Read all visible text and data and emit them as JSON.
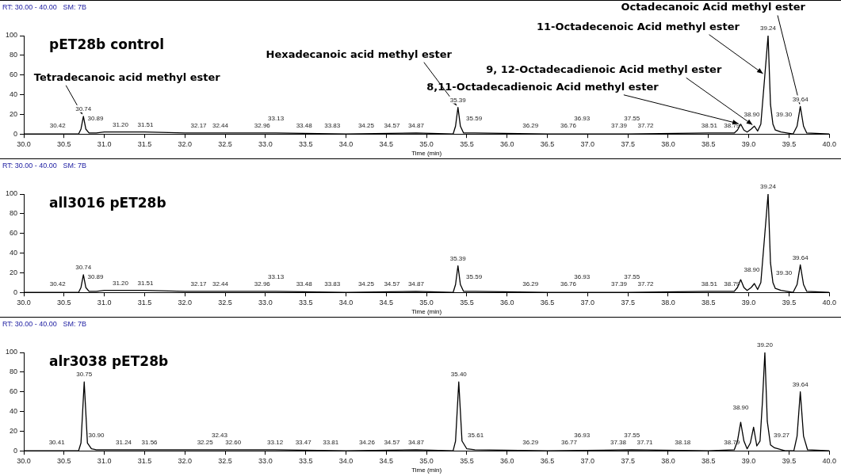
{
  "chart_data": [
    {
      "type": "line",
      "title": "pET28b control",
      "xlabel": "Time (min)",
      "color": "#000000",
      "x": [
        30.0,
        30.68,
        30.71,
        30.74,
        30.77,
        30.81,
        30.9,
        31.0,
        31.2,
        31.5,
        32.0,
        33.13,
        34.0,
        34.87,
        35.33,
        35.36,
        35.39,
        35.42,
        35.46,
        35.6,
        36.5,
        37.5,
        38.5,
        38.82,
        38.86,
        38.9,
        38.94,
        38.98,
        39.03,
        39.07,
        39.11,
        39.15,
        39.2,
        39.24,
        39.27,
        39.3,
        39.33,
        39.4,
        39.55,
        39.6,
        39.64,
        39.68,
        39.72,
        40.0
      ],
      "values": [
        0,
        0,
        5,
        18,
        5,
        1,
        1,
        2,
        2,
        2,
        1,
        1,
        0,
        1,
        0,
        8,
        27,
        8,
        1,
        1,
        0,
        0,
        1,
        1,
        4,
        10,
        4,
        2,
        5,
        8,
        3,
        10,
        60,
        100,
        30,
        10,
        4,
        2,
        0,
        8,
        28,
        8,
        1,
        0
      ],
      "xlim": [
        30,
        40
      ],
      "xticks": [
        {
          "value": 30,
          "label": "30.0"
        },
        {
          "value": 30.5,
          "label": "30.5"
        },
        {
          "value": 31,
          "label": "31.0"
        },
        {
          "value": 31.5,
          "label": "31.5"
        },
        {
          "value": 32,
          "label": "32.0"
        },
        {
          "value": 32.5,
          "label": "32.5"
        },
        {
          "value": 33,
          "label": "33.0"
        },
        {
          "value": 33.5,
          "label": "33.5"
        },
        {
          "value": 34,
          "label": "34.0"
        },
        {
          "value": 34.5,
          "label": "34.5"
        },
        {
          "value": 35,
          "label": "35.0"
        },
        {
          "value": 35.5,
          "label": "35.5"
        },
        {
          "value": 36,
          "label": "36.0"
        },
        {
          "value": 36.5,
          "label": "36.5"
        },
        {
          "value": 37,
          "label": "37.0"
        },
        {
          "value": 37.5,
          "label": "37.5"
        },
        {
          "value": 38,
          "label": "38.0"
        },
        {
          "value": 38.5,
          "label": "38.5"
        },
        {
          "value": 39,
          "label": "39.0"
        },
        {
          "value": 39.5,
          "label": "39.5"
        },
        {
          "value": 40,
          "label": "40.0"
        }
      ],
      "ylim": [
        0,
        100
      ],
      "yticks": [
        0,
        20,
        40,
        60,
        80,
        100
      ],
      "annotations": [
        "RT: 30.00 - 40.00   SM: 7B",
        {
          "text": "30.42",
          "x": 30.42,
          "y": 1
        },
        {
          "text": "30.74",
          "x": 30.74,
          "y": 18
        },
        {
          "text": "30.89",
          "x": 30.89,
          "y": 1
        },
        {
          "text": "31.20",
          "x": 31.2,
          "y": 2
        },
        {
          "text": "31.51",
          "x": 31.51,
          "y": 2
        },
        {
          "text": "32.17",
          "x": 32.17,
          "y": 1
        },
        {
          "text": "32.44",
          "x": 32.44,
          "y": 1
        },
        {
          "text": "32.96",
          "x": 32.96,
          "y": 1
        },
        {
          "text": "33.13",
          "x": 33.13,
          "y": 1
        },
        {
          "text": "33.48",
          "x": 33.48,
          "y": 1
        },
        {
          "text": "33.83",
          "x": 33.83,
          "y": 1
        },
        {
          "text": "34.25",
          "x": 34.25,
          "y": 1
        },
        {
          "text": "34.57",
          "x": 34.57,
          "y": 1
        },
        {
          "text": "34.87",
          "x": 34.87,
          "y": 1
        },
        {
          "text": "35.39",
          "x": 35.39,
          "y": 27
        },
        {
          "text": "35.59",
          "x": 35.59,
          "y": 1
        },
        {
          "text": "36.29",
          "x": 36.29,
          "y": 1
        },
        {
          "text": "36.76",
          "x": 36.76,
          "y": 1
        },
        {
          "text": "36.93",
          "x": 36.93,
          "y": 1
        },
        {
          "text": "37.39",
          "x": 37.39,
          "y": 1
        },
        {
          "text": "37.55",
          "x": 37.55,
          "y": 1
        },
        {
          "text": "37.72",
          "x": 37.72,
          "y": 1
        },
        {
          "text": "38.51",
          "x": 38.51,
          "y": 1
        },
        {
          "text": "38.79",
          "x": 38.79,
          "y": 1
        },
        {
          "text": "38.90",
          "x": 38.9,
          "y": 10
        },
        {
          "text": "39.24",
          "x": 39.24,
          "y": 100
        },
        {
          "text": "39.30",
          "x": 39.3,
          "y": 10
        },
        {
          "text": "39.64",
          "x": 39.64,
          "y": 28
        },
        {
          "text": "Tetradecanoic acid methyl ester",
          "x": 30.74,
          "y": 18
        },
        {
          "text": "Hexadecanoic acid methyl ester",
          "x": 35.39,
          "y": 27
        },
        {
          "text": "9, 12-Octadecadienoic Acid methyl ester",
          "x": 39.07,
          "y": 8
        },
        {
          "text": "8,11-Octadecadienoic Acid methyl ester",
          "x": 38.9,
          "y": 10
        },
        {
          "text": "11-Octadecenoic Acid methyl ester",
          "x": 39.2,
          "y": 60
        },
        {
          "text": "Octadecanoic Acid methyl ester",
          "x": 39.64,
          "y": 28
        }
      ]
    },
    {
      "type": "line",
      "title": "all3016 pET28b",
      "xlabel": "Time (min)",
      "color": "#000000",
      "x": [
        30.0,
        30.68,
        30.71,
        30.74,
        30.77,
        30.81,
        30.9,
        31.0,
        31.2,
        31.5,
        32.0,
        33.13,
        34.0,
        34.87,
        35.33,
        35.36,
        35.39,
        35.42,
        35.46,
        35.6,
        36.5,
        37.5,
        38.5,
        38.82,
        38.86,
        38.9,
        38.94,
        38.98,
        39.03,
        39.07,
        39.11,
        39.15,
        39.2,
        39.24,
        39.27,
        39.3,
        39.33,
        39.4,
        39.55,
        39.6,
        39.64,
        39.68,
        39.72,
        40.0
      ],
      "values": [
        0,
        0,
        5,
        18,
        5,
        1,
        1,
        2,
        2,
        2,
        1,
        1,
        0,
        1,
        0,
        8,
        27,
        8,
        1,
        1,
        0,
        0,
        1,
        1,
        5,
        13,
        5,
        2,
        5,
        9,
        3,
        10,
        60,
        100,
        30,
        10,
        4,
        2,
        0,
        8,
        28,
        8,
        1,
        0
      ],
      "xlim": [
        30,
        40
      ],
      "xticks": [
        {
          "value": 30,
          "label": "30.0"
        },
        {
          "value": 30.5,
          "label": "30.5"
        },
        {
          "value": 31,
          "label": "31.0"
        },
        {
          "value": 31.5,
          "label": "31.5"
        },
        {
          "value": 32,
          "label": "32.0"
        },
        {
          "value": 32.5,
          "label": "32.5"
        },
        {
          "value": 33,
          "label": "33.0"
        },
        {
          "value": 33.5,
          "label": "33.5"
        },
        {
          "value": 34,
          "label": "34.0"
        },
        {
          "value": 34.5,
          "label": "34.5"
        },
        {
          "value": 35,
          "label": "35.0"
        },
        {
          "value": 35.5,
          "label": "35.5"
        },
        {
          "value": 36,
          "label": "36.0"
        },
        {
          "value": 36.5,
          "label": "36.5"
        },
        {
          "value": 37,
          "label": "37.0"
        },
        {
          "value": 37.5,
          "label": "37.5"
        },
        {
          "value": 38,
          "label": "38.0"
        },
        {
          "value": 38.5,
          "label": "38.5"
        },
        {
          "value": 39,
          "label": "39.0"
        },
        {
          "value": 39.5,
          "label": "39.5"
        },
        {
          "value": 40,
          "label": "40.0"
        }
      ],
      "ylim": [
        0,
        100
      ],
      "yticks": [
        0,
        20,
        40,
        60,
        80,
        100
      ],
      "annotations": [
        "RT: 30.00 - 40.00   SM: 7B",
        {
          "text": "30.42",
          "x": 30.42,
          "y": 1
        },
        {
          "text": "30.74",
          "x": 30.74,
          "y": 18
        },
        {
          "text": "30.89",
          "x": 30.89,
          "y": 1
        },
        {
          "text": "31.20",
          "x": 31.2,
          "y": 2
        },
        {
          "text": "31.51",
          "x": 31.51,
          "y": 2
        },
        {
          "text": "32.17",
          "x": 32.17,
          "y": 1
        },
        {
          "text": "32.44",
          "x": 32.44,
          "y": 1
        },
        {
          "text": "32.96",
          "x": 32.96,
          "y": 1
        },
        {
          "text": "33.13",
          "x": 33.13,
          "y": 1
        },
        {
          "text": "33.48",
          "x": 33.48,
          "y": 1
        },
        {
          "text": "33.83",
          "x": 33.83,
          "y": 1
        },
        {
          "text": "34.25",
          "x": 34.25,
          "y": 1
        },
        {
          "text": "34.57",
          "x": 34.57,
          "y": 1
        },
        {
          "text": "34.87",
          "x": 34.87,
          "y": 1
        },
        {
          "text": "35.39",
          "x": 35.39,
          "y": 27
        },
        {
          "text": "35.59",
          "x": 35.59,
          "y": 1
        },
        {
          "text": "36.29",
          "x": 36.29,
          "y": 1
        },
        {
          "text": "36.76",
          "x": 36.76,
          "y": 1
        },
        {
          "text": "36.93",
          "x": 36.93,
          "y": 1
        },
        {
          "text": "37.39",
          "x": 37.39,
          "y": 1
        },
        {
          "text": "37.55",
          "x": 37.55,
          "y": 1
        },
        {
          "text": "37.72",
          "x": 37.72,
          "y": 1
        },
        {
          "text": "38.51",
          "x": 38.51,
          "y": 1
        },
        {
          "text": "38.79",
          "x": 38.79,
          "y": 1
        },
        {
          "text": "38.90",
          "x": 38.9,
          "y": 13
        },
        {
          "text": "39.24",
          "x": 39.24,
          "y": 100
        },
        {
          "text": "39.30",
          "x": 39.3,
          "y": 10
        },
        {
          "text": "39.64",
          "x": 39.64,
          "y": 28
        }
      ]
    },
    {
      "type": "line",
      "title": "alr3038 pET28b",
      "xlabel": "Time (min)",
      "color": "#000000",
      "x": [
        30.0,
        30.68,
        30.71,
        30.75,
        30.79,
        30.84,
        30.9,
        31.0,
        31.24,
        31.56,
        32.0,
        33.12,
        34.0,
        34.87,
        35.33,
        35.36,
        35.4,
        35.44,
        35.5,
        35.6,
        36.5,
        37.55,
        38.5,
        38.82,
        38.86,
        38.9,
        38.94,
        38.98,
        39.02,
        39.06,
        39.1,
        39.14,
        39.17,
        39.2,
        39.23,
        39.27,
        39.32,
        39.45,
        39.56,
        39.6,
        39.64,
        39.68,
        39.73,
        40.0
      ],
      "values": [
        0,
        0,
        8,
        70,
        8,
        2,
        1,
        1,
        1,
        1,
        1,
        1,
        0,
        1,
        0,
        10,
        70,
        10,
        2,
        1,
        0,
        1,
        0,
        1,
        10,
        29,
        10,
        2,
        8,
        24,
        5,
        10,
        50,
        100,
        30,
        6,
        3,
        0,
        0,
        15,
        60,
        15,
        1,
        0
      ],
      "xlim": [
        30,
        40
      ],
      "xticks": [
        {
          "value": 30,
          "label": "30.0"
        },
        {
          "value": 30.5,
          "label": "30.5"
        },
        {
          "value": 31,
          "label": "31.0"
        },
        {
          "value": 31.5,
          "label": "31.5"
        },
        {
          "value": 32,
          "label": "32.0"
        },
        {
          "value": 32.5,
          "label": "32.5"
        },
        {
          "value": 33,
          "label": "33.0"
        },
        {
          "value": 33.5,
          "label": "33.5"
        },
        {
          "value": 34,
          "label": "34.0"
        },
        {
          "value": 34.5,
          "label": "34.5"
        },
        {
          "value": 35,
          "label": "35.0"
        },
        {
          "value": 35.5,
          "label": "35.5"
        },
        {
          "value": 36,
          "label": "36.0"
        },
        {
          "value": 36.5,
          "label": "36.5"
        },
        {
          "value": 37,
          "label": "37.0"
        },
        {
          "value": 37.5,
          "label": "37.5"
        },
        {
          "value": 38,
          "label": "38.0"
        },
        {
          "value": 38.5,
          "label": "38.5"
        },
        {
          "value": 39,
          "label": "39.0"
        },
        {
          "value": 39.5,
          "label": "39.5"
        },
        {
          "value": 40,
          "label": "40.0"
        }
      ],
      "ylim": [
        0,
        100
      ],
      "yticks": [
        0,
        20,
        40,
        60,
        80,
        100
      ],
      "annotations": [
        "RT: 30.00 - 40.00   SM: 7B",
        {
          "text": "30.41",
          "x": 30.41,
          "y": 1
        },
        {
          "text": "30.75",
          "x": 30.75,
          "y": 70
        },
        {
          "text": "30.90",
          "x": 30.9,
          "y": 1
        },
        {
          "text": "31.24",
          "x": 31.24,
          "y": 1
        },
        {
          "text": "31.56",
          "x": 31.56,
          "y": 1
        },
        {
          "text": "32.25",
          "x": 32.25,
          "y": 1
        },
        {
          "text": "32.43",
          "x": 32.43,
          "y": 1
        },
        {
          "text": "32.60",
          "x": 32.6,
          "y": 1
        },
        {
          "text": "33.12",
          "x": 33.12,
          "y": 1
        },
        {
          "text": "33.47",
          "x": 33.47,
          "y": 1
        },
        {
          "text": "33.81",
          "x": 33.81,
          "y": 1
        },
        {
          "text": "34.26",
          "x": 34.26,
          "y": 1
        },
        {
          "text": "34.57",
          "x": 34.57,
          "y": 1
        },
        {
          "text": "34.87",
          "x": 34.87,
          "y": 1
        },
        {
          "text": "35.40",
          "x": 35.4,
          "y": 70
        },
        {
          "text": "35.61",
          "x": 35.61,
          "y": 1
        },
        {
          "text": "36.29",
          "x": 36.29,
          "y": 1
        },
        {
          "text": "36.77",
          "x": 36.77,
          "y": 1
        },
        {
          "text": "36.93",
          "x": 36.93,
          "y": 1
        },
        {
          "text": "37.38",
          "x": 37.38,
          "y": 1
        },
        {
          "text": "37.55",
          "x": 37.55,
          "y": 1
        },
        {
          "text": "37.71",
          "x": 37.71,
          "y": 1
        },
        {
          "text": "38.18",
          "x": 38.18,
          "y": 1
        },
        {
          "text": "38.79",
          "x": 38.79,
          "y": 1
        },
        {
          "text": "38.90",
          "x": 38.9,
          "y": 29
        },
        {
          "text": "39.20",
          "x": 39.2,
          "y": 100
        },
        {
          "text": "39.27",
          "x": 39.27,
          "y": 6
        },
        {
          "text": "39.64",
          "x": 39.64,
          "y": 60
        }
      ]
    }
  ]
}
